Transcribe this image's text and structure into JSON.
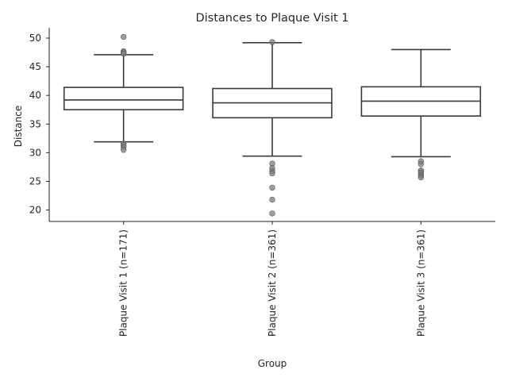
{
  "chart_data": {
    "type": "box",
    "title": "Distances to Plaque Visit 1",
    "xlabel": "Group",
    "ylabel": "Distance",
    "ylim": [
      18,
      51.8
    ],
    "yticks": [
      20,
      25,
      30,
      35,
      40,
      45,
      50
    ],
    "grid": false,
    "categories": [
      "Plaque Visit 1 (n=171)",
      "Plaque Visit 2 (n=361)",
      "Plaque Visit 3 (n=361)"
    ],
    "boxes": [
      {
        "whisker_low": 31.9,
        "q1": 37.5,
        "median": 39.2,
        "q3": 41.4,
        "whisker_high": 47.1,
        "outliers": [
          50.2,
          47.7,
          47.5,
          47.3,
          31.6,
          31.3,
          31.0,
          30.5
        ]
      },
      {
        "whisker_low": 29.4,
        "q1": 36.1,
        "median": 38.7,
        "q3": 41.2,
        "whisker_high": 49.2,
        "outliers": [
          49.3,
          28.1,
          27.3,
          26.8,
          26.4,
          23.9,
          21.8,
          19.4
        ]
      },
      {
        "whisker_low": 29.3,
        "q1": 36.4,
        "median": 39.0,
        "q3": 41.5,
        "whisker_high": 48.0,
        "outliers": [
          28.5,
          28.0,
          26.9,
          26.6,
          26.3,
          26.0,
          25.7
        ]
      }
    ]
  }
}
